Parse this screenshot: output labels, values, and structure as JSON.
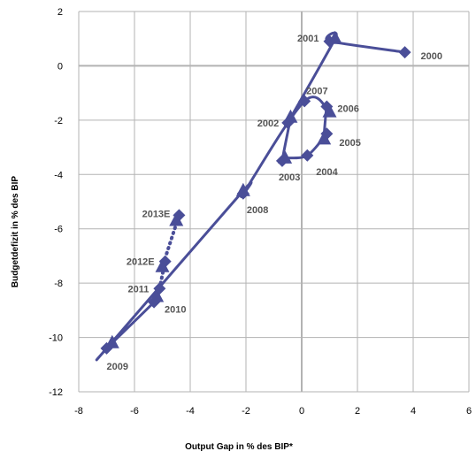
{
  "chart_data": {
    "type": "scatter",
    "title": "",
    "xlabel": "Output Gap in % des BIP*",
    "ylabel": "Budgetdefizit  in % des BIP",
    "xlim": [
      -8,
      6
    ],
    "ylim": [
      -12,
      2
    ],
    "x_ticks": [
      "-8",
      "-6",
      "-4",
      "-2",
      "0",
      "2",
      "4",
      "6"
    ],
    "y_ticks": [
      "2",
      "0",
      "-2",
      "-4",
      "-6",
      "-8",
      "-10",
      "-12"
    ],
    "grid": true,
    "legend": "none",
    "colors": {
      "series": "#4a4e98",
      "label": "#555555",
      "grid": "#b3b3b3"
    },
    "series": [
      {
        "line": "smooth",
        "points": [
          {
            "label": "2000",
            "x": 3.7,
            "y": 0.5,
            "marker": "diamond"
          },
          {
            "label": "2001",
            "x": 1.0,
            "y": 0.9,
            "marker": "diamond"
          },
          {
            "label": "",
            "x": 1.2,
            "y": 1.0,
            "marker": "triangle"
          },
          {
            "label": "2002",
            "x": -0.5,
            "y": -2.1,
            "marker": "diamond"
          },
          {
            "label": "",
            "x": -0.4,
            "y": -1.9,
            "marker": "triangle"
          },
          {
            "label": "2003",
            "x": -0.7,
            "y": -3.5,
            "marker": "diamond"
          },
          {
            "label": "",
            "x": -0.6,
            "y": -3.4,
            "marker": "triangle"
          },
          {
            "label": "2004",
            "x": 0.2,
            "y": -3.3,
            "marker": "diamond"
          },
          {
            "label": "2005",
            "x": 0.9,
            "y": -2.5,
            "marker": "diamond"
          },
          {
            "label": "",
            "x": 0.8,
            "y": -2.7,
            "marker": "triangle"
          },
          {
            "label": "2006",
            "x": 0.9,
            "y": -1.5,
            "marker": "diamond"
          },
          {
            "label": "",
            "x": 1.0,
            "y": -1.7,
            "marker": "triangle"
          },
          {
            "label": "2007",
            "x": 0.1,
            "y": -1.3,
            "marker": "diamond"
          },
          {
            "label": "2008",
            "x": -2.1,
            "y": -4.7,
            "marker": "diamond"
          },
          {
            "label": "",
            "x": -2.1,
            "y": -4.6,
            "marker": "triangle"
          },
          {
            "label": "2009",
            "x": -7.0,
            "y": -10.4,
            "marker": "diamond"
          },
          {
            "label": "",
            "x": -6.8,
            "y": -10.2,
            "marker": "triangle"
          },
          {
            "label": "2010",
            "x": -5.3,
            "y": -8.7,
            "marker": "diamond"
          },
          {
            "label": "",
            "x": -5.2,
            "y": -8.5,
            "marker": "triangle"
          },
          {
            "label": "2011",
            "x": -5.1,
            "y": -8.2,
            "marker": "diamond"
          }
        ]
      },
      {
        "line": "dotted",
        "points": [
          {
            "label": "2011",
            "x": -5.1,
            "y": -8.2,
            "marker": "none"
          },
          {
            "label": "2012E",
            "x": -4.9,
            "y": -7.2,
            "marker": "diamond"
          },
          {
            "label": "",
            "x": -5.0,
            "y": -7.4,
            "marker": "triangle"
          },
          {
            "label": "2013E",
            "x": -4.4,
            "y": -5.5,
            "marker": "diamond"
          },
          {
            "label": "",
            "x": -4.5,
            "y": -5.7,
            "marker": "triangle"
          }
        ]
      }
    ]
  }
}
